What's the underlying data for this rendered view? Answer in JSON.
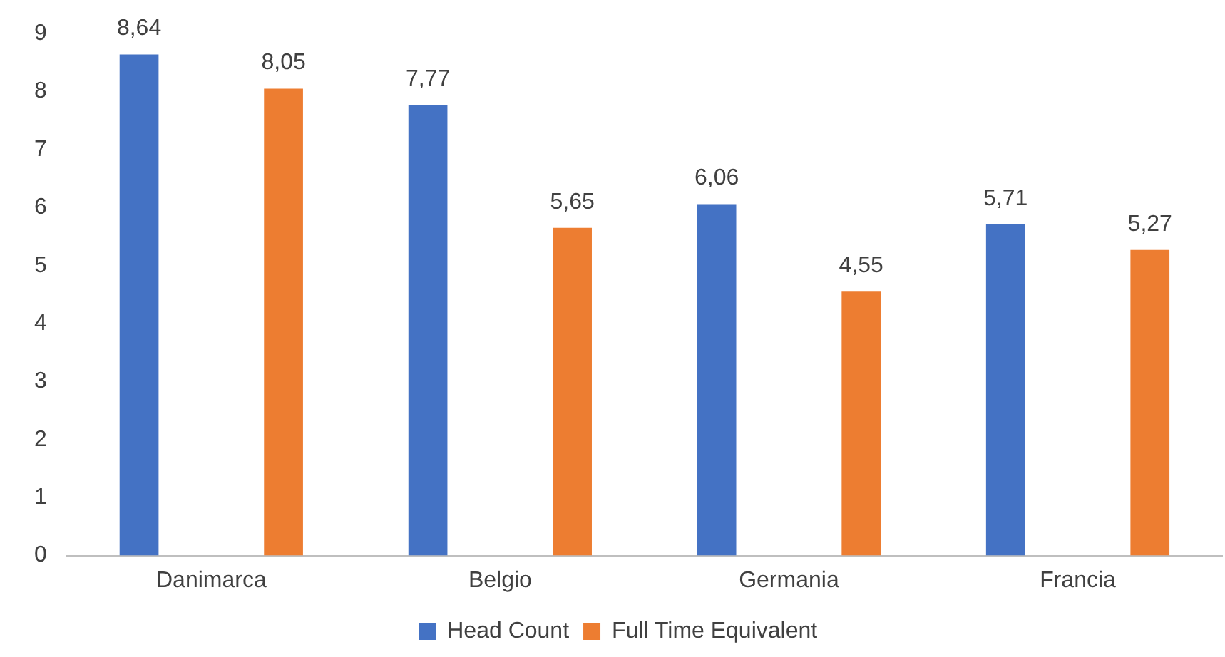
{
  "chart_data": {
    "type": "bar",
    "categories": [
      "Danimarca",
      "Belgio",
      "Germania",
      "Francia"
    ],
    "series": [
      {
        "name": "Head Count",
        "color": "#4472c4",
        "values": [
          8.64,
          7.77,
          6.06,
          5.71
        ],
        "value_labels": [
          "8,64",
          "7,77",
          "6,06",
          "5,71"
        ]
      },
      {
        "name": "Full Time Equivalent",
        "color": "#ed7d31",
        "values": [
          8.05,
          5.65,
          4.55,
          5.27
        ],
        "value_labels": [
          "8,05",
          "5,65",
          "4,55",
          "5,27"
        ]
      }
    ],
    "ylim": [
      0,
      9
    ],
    "yticks": [
      0,
      1,
      2,
      3,
      4,
      5,
      6,
      7,
      8,
      9
    ],
    "grid": false,
    "legend": "bottom"
  }
}
